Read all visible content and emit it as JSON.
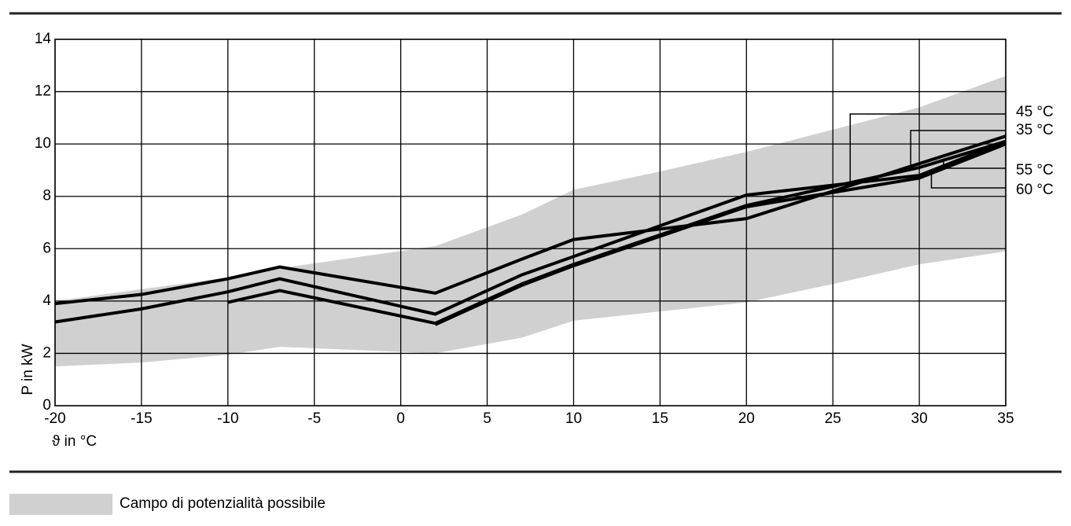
{
  "chart_data": {
    "type": "line",
    "xlabel": "ϑ in °C",
    "ylabel": "P in kW",
    "xlim": [
      -20,
      35
    ],
    "ylim": [
      0,
      14
    ],
    "xticks": [
      -20,
      -15,
      -10,
      -5,
      0,
      5,
      10,
      15,
      20,
      25,
      30,
      35
    ],
    "yticks": [
      0,
      2,
      4,
      6,
      8,
      10,
      12,
      14
    ],
    "grid": true,
    "band": {
      "name": "Campo di potenzialità possibile",
      "color": "#d0d0d0",
      "x": [
        -20,
        -15,
        -10,
        -7,
        2,
        7,
        10,
        15,
        20,
        25,
        30,
        35
      ],
      "upper": [
        4.0,
        4.45,
        4.9,
        5.25,
        6.1,
        7.3,
        8.25,
        8.95,
        9.7,
        10.55,
        11.4,
        12.6
      ],
      "lower": [
        1.5,
        1.65,
        1.95,
        2.25,
        2.0,
        2.6,
        3.25,
        3.6,
        3.95,
        4.65,
        5.4,
        5.9
      ]
    },
    "series": [
      {
        "name": "45 °C",
        "color": "#000000",
        "x": [
          -20,
          -15,
          -10,
          -7,
          2,
          7,
          10,
          20,
          30,
          35
        ],
        "values": [
          3.2,
          3.7,
          4.35,
          4.85,
          3.5,
          5.0,
          5.7,
          8.05,
          8.8,
          10.1
        ]
      },
      {
        "name": "35 °C",
        "color": "#000000",
        "x": [
          -20,
          -15,
          -10,
          -7,
          2,
          7,
          10,
          15,
          20,
          35
        ],
        "values": [
          3.9,
          4.25,
          4.85,
          5.3,
          4.3,
          5.6,
          6.35,
          6.75,
          7.15,
          10.3
        ]
      },
      {
        "name": "55 °C",
        "color": "#000000",
        "x": [
          -10,
          -7,
          2,
          7,
          10,
          20,
          30,
          35
        ],
        "values": [
          3.95,
          4.4,
          3.15,
          4.65,
          5.4,
          7.65,
          9.1,
          10.1
        ]
      },
      {
        "name": "60 °C",
        "color": "#000000",
        "x": [
          2,
          7,
          10,
          20,
          30,
          35
        ],
        "values": [
          3.1,
          4.6,
          5.35,
          7.6,
          8.7,
          10.0
        ]
      }
    ]
  }
}
